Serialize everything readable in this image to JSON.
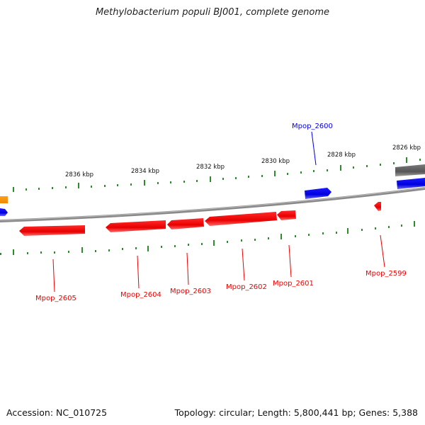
{
  "title": "Methylobacterium populi BJ001, complete genome",
  "footer": {
    "accession": "Accession: NC_010725",
    "summary": "Topology: circular; Length: 5,800,441 bp; Genes: 5,388"
  },
  "colors": {
    "backbone": "#8a8a8a",
    "tick": "#2e8b2e",
    "forward_gene": "#0000ee",
    "reverse_gene": "#ee0000",
    "other_gene": "#6e6e6e",
    "orange_gene": "#ff9900"
  },
  "scale": {
    "kbp_labels": [
      "2836 kbp",
      "2834 kbp",
      "2832 kbp",
      "2830 kbp",
      "2828 kbp",
      "2826 kbp"
    ]
  },
  "genes": [
    {
      "name": "Mpop_2600",
      "strand": "forward"
    },
    {
      "name": "Mpop_2605",
      "strand": "reverse"
    },
    {
      "name": "Mpop_2604",
      "strand": "reverse"
    },
    {
      "name": "Mpop_2603",
      "strand": "reverse"
    },
    {
      "name": "Mpop_2602",
      "strand": "reverse"
    },
    {
      "name": "Mpop_2601",
      "strand": "reverse"
    },
    {
      "name": "Mpop_2599",
      "strand": "reverse"
    }
  ]
}
